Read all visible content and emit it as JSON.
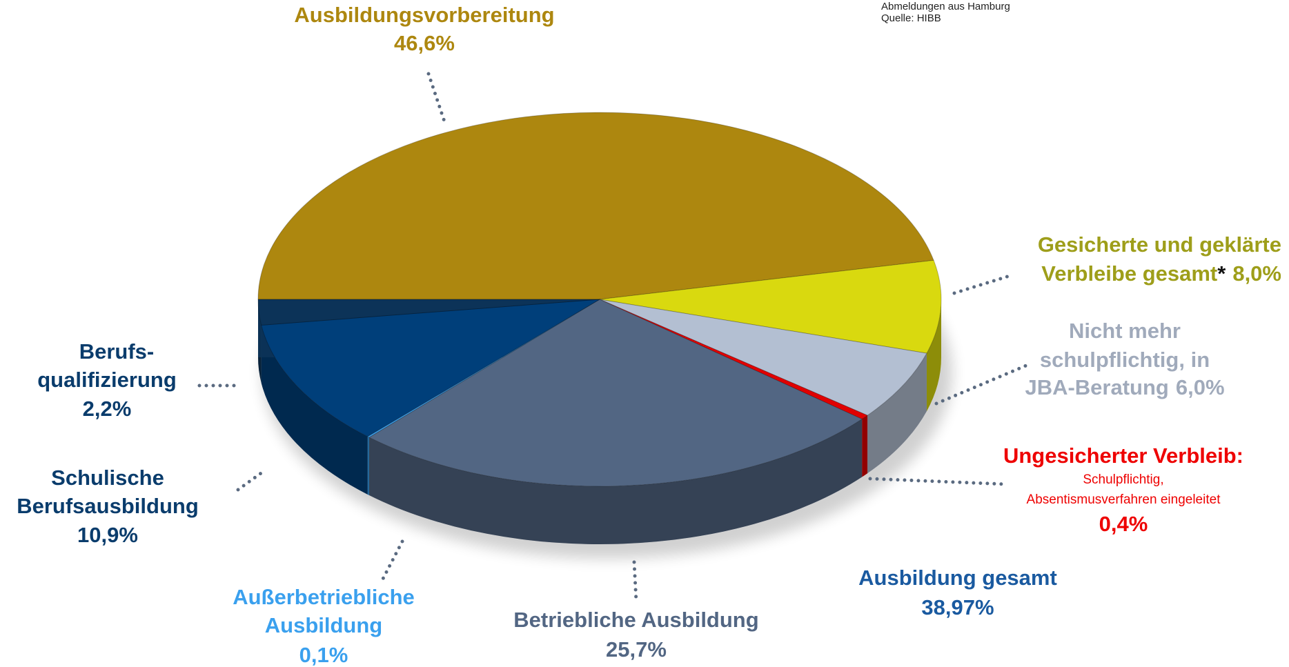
{
  "chart_data": {
    "type": "pie",
    "notes": [
      "Abmeldungen aus Hamburg",
      "Quelle: HIBB"
    ],
    "categories": [
      [
        "Ausbildungsvorbereitung"
      ],
      [
        "Gesicherte und geklärte",
        "Verbleibe gesamt"
      ],
      [
        "Nicht mehr",
        "schulpflichtig, in",
        "JBA-Beratung"
      ],
      [
        "Ungesicherter Verbleib:"
      ],
      [
        "Betriebliche Ausbildung"
      ],
      [
        "Außerbetriebliche",
        "Ausbildung"
      ],
      [
        "Schulische",
        "Berufsausbildung"
      ],
      [
        "Berufs-",
        "qualifizierung"
      ]
    ],
    "values": [
      46.6,
      8.0,
      6.0,
      0.4,
      25.7,
      0.1,
      10.9,
      2.2
    ],
    "value_labels": [
      "46,6%",
      "8,0%",
      "6,0%",
      "0,4%",
      "25,7%",
      "0,1%",
      "10,9%",
      "2,2%"
    ],
    "colors": [
      "#ad870f",
      "#d9d90f",
      "#b3bfd2",
      "#e00000",
      "#526683",
      "#3aa0ee",
      "#003f7a",
      "#0c3358"
    ],
    "label_colors": [
      "#ad870f",
      "#9e9e1a",
      "#a0aabb",
      "#ee0000",
      "#526683",
      "#3aa0ee",
      "#0a3c6c",
      "#0a3c6c"
    ],
    "footnote_marker": "*",
    "detail": [
      "Schulpflichtig,",
      "Absentismusverfahren eingeleitet"
    ],
    "summary": {
      "label": "Ausbildung  gesamt",
      "value": 38.97,
      "value_label": "38,97%",
      "color": "#1a5aa0"
    }
  }
}
